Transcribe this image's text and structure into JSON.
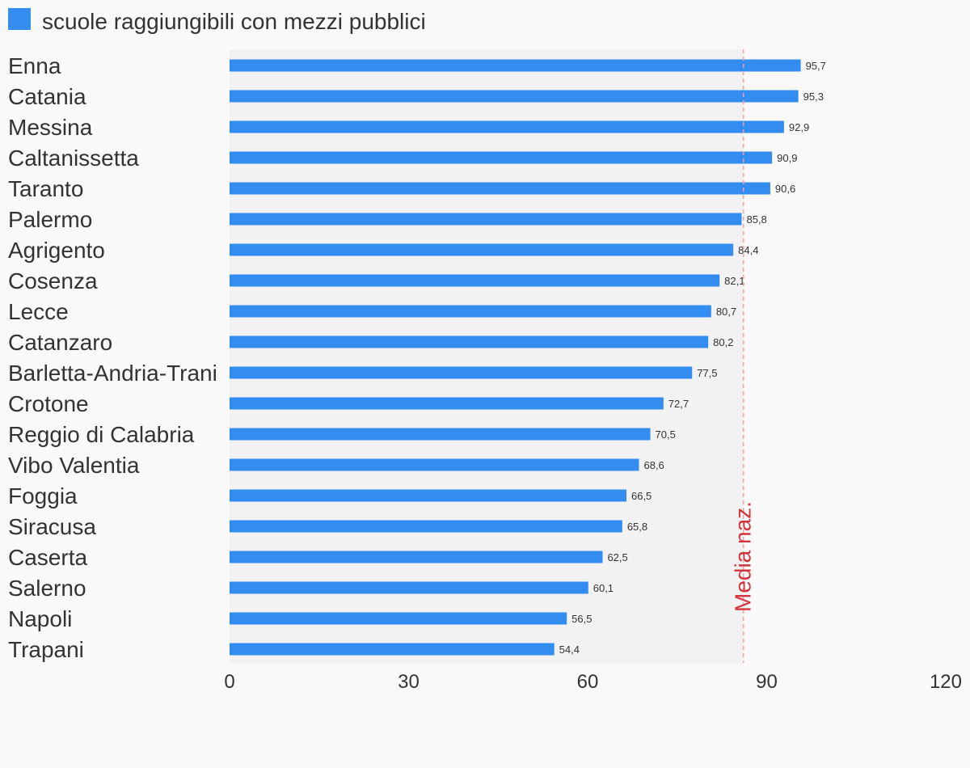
{
  "chart_data": {
    "type": "bar",
    "orientation": "horizontal",
    "title": "",
    "legend": [
      {
        "label": "scuole raggiungibili con mezzi pubblici",
        "color": "#338df0"
      }
    ],
    "categories": [
      "Enna",
      "Catania",
      "Messina",
      "Caltanissetta",
      "Taranto",
      "Palermo",
      "Agrigento",
      "Cosenza",
      "Lecce",
      "Catanzaro",
      "Barletta-Andria-Trani",
      "Crotone",
      "Reggio di Calabria",
      "Vibo Valentia",
      "Foggia",
      "Siracusa",
      "Caserta",
      "Salerno",
      "Napoli",
      "Trapani"
    ],
    "values": [
      95.7,
      95.3,
      92.9,
      90.9,
      90.6,
      85.8,
      84.4,
      82.1,
      80.7,
      80.2,
      77.5,
      72.7,
      70.5,
      68.6,
      66.5,
      65.8,
      62.5,
      60.1,
      56.5,
      54.4
    ],
    "value_labels": [
      "95,7",
      "95,3",
      "92,9",
      "90,9",
      "90,6",
      "85,8",
      "84,4",
      "82,1",
      "80,7",
      "80,2",
      "77,5",
      "72,7",
      "70,5",
      "68,6",
      "66,5",
      "65,8",
      "62,5",
      "60,1",
      "56,5",
      "54,4"
    ],
    "xlim": [
      0,
      120
    ],
    "xticks": [
      0,
      30,
      60,
      90,
      120
    ],
    "xtick_labels": [
      "0",
      "30",
      "60",
      "90",
      "120"
    ],
    "xlabel": "",
    "ylabel": "",
    "grid": false,
    "legend_position": "top-left",
    "reference_line": {
      "label": "Media naz.",
      "value": 86.1,
      "color": "#d4343c"
    },
    "colors": {
      "bar": "#338df0",
      "plot_background": "#f2f2f2",
      "reference": "#f4a3a8"
    }
  }
}
